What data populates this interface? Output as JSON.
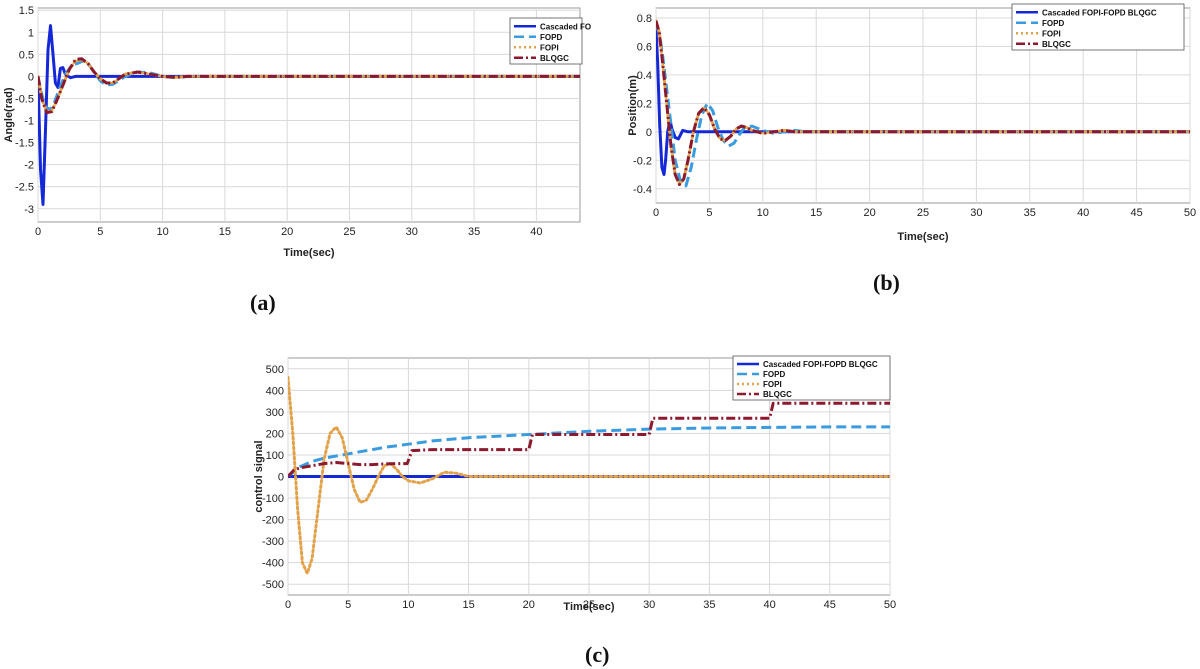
{
  "series_styles": [
    {
      "name": "Cascaded FOPI-FOPD BLQGC",
      "color": "#1428d8",
      "dash": "",
      "width": 3
    },
    {
      "name": "FOPD",
      "color": "#3a9be0",
      "dash": "10,5",
      "width": 3
    },
    {
      "name": "FOPI",
      "color": "#e2a24a",
      "dash": "2,3",
      "width": 3
    },
    {
      "name": "BLQGC",
      "color": "#8b1a2e",
      "dash": "9,3,2,3",
      "width": 3
    }
  ],
  "panels": {
    "a": {
      "label": "(a)"
    },
    "b": {
      "label": "(b)"
    },
    "c": {
      "label": "(c)"
    }
  },
  "chart_data": [
    {
      "id": "a",
      "type": "line",
      "xlabel": "Time(sec)",
      "ylabel": "Angle(rad)",
      "xlim": [
        0,
        43.5
      ],
      "ylim": [
        -3.3,
        1.55
      ],
      "xticks": [
        0,
        5,
        10,
        15,
        20,
        25,
        30,
        35,
        40
      ],
      "yticks": [
        -3,
        -2.5,
        -2,
        -1.5,
        -1,
        -0.5,
        0,
        0.5,
        1,
        1.5
      ],
      "yticklabels": [
        "-3",
        "-2.5",
        "-2",
        "-1.5",
        "-1",
        "-0.5",
        "0",
        "0.5",
        "1",
        "1.5"
      ],
      "legend": [
        "Cascaded FO",
        "FOPD",
        "FOPI",
        "BLQGC"
      ],
      "series": [
        {
          "name": "Cascaded FOPI-FOPD BLQGC",
          "x": [
            0,
            0.2,
            0.4,
            0.6,
            0.8,
            1.0,
            1.2,
            1.4,
            1.6,
            1.8,
            2.0,
            2.2,
            2.6,
            3.0,
            4,
            43.5
          ],
          "y": [
            0,
            -2.1,
            -2.9,
            -1.2,
            0.6,
            1.15,
            0.5,
            -0.15,
            -0.25,
            0.18,
            0.2,
            0.05,
            -0.03,
            0,
            0,
            0
          ]
        },
        {
          "name": "FOPD",
          "x": [
            0,
            0.3,
            0.6,
            1.0,
            1.3,
            1.7,
            2.2,
            2.7,
            3.2,
            3.6,
            4.0,
            4.5,
            5.0,
            5.5,
            6.0,
            7.0,
            8.0,
            9.0,
            10,
            11,
            12,
            13,
            43.5
          ],
          "y": [
            0,
            -0.4,
            -0.7,
            -0.75,
            -0.6,
            -0.3,
            0.05,
            0.25,
            0.3,
            0.35,
            0.3,
            0.1,
            -0.1,
            -0.2,
            -0.18,
            0,
            0.1,
            0.08,
            0,
            -0.03,
            0,
            0,
            0
          ]
        },
        {
          "name": "FOPI",
          "x": [
            0,
            0.3,
            0.7,
            1.1,
            1.5,
            2.0,
            2.5,
            3.0,
            3.5,
            4.0,
            4.5,
            5.0,
            5.5,
            6.0,
            7.0,
            8.0,
            9.0,
            10,
            11,
            12,
            43.5
          ],
          "y": [
            0,
            -0.5,
            -0.8,
            -0.78,
            -0.55,
            -0.2,
            0.15,
            0.35,
            0.38,
            0.3,
            0.1,
            -0.05,
            -0.15,
            -0.15,
            0.05,
            0.1,
            0.05,
            0,
            -0.02,
            0,
            0
          ]
        },
        {
          "name": "BLQGC",
          "x": [
            0,
            0.3,
            0.7,
            1.1,
            1.5,
            2.0,
            2.5,
            3.0,
            3.5,
            4.0,
            4.5,
            5.0,
            5.5,
            6.0,
            7.0,
            8.0,
            9.0,
            10,
            11,
            12,
            43.5
          ],
          "y": [
            0,
            -0.5,
            -0.82,
            -0.8,
            -0.55,
            -0.2,
            0.15,
            0.38,
            0.4,
            0.3,
            0.1,
            -0.05,
            -0.15,
            -0.15,
            0.05,
            0.1,
            0.05,
            0,
            -0.02,
            0,
            0
          ]
        }
      ]
    },
    {
      "id": "b",
      "type": "line",
      "xlabel": "Time(sec)",
      "ylabel": "Position(m)",
      "xlim": [
        0,
        50
      ],
      "ylim": [
        -0.5,
        0.87
      ],
      "xticks": [
        0,
        5,
        10,
        15,
        20,
        25,
        30,
        35,
        40,
        45,
        50
      ],
      "yticks": [
        -0.4,
        -0.2,
        0,
        0.2,
        0.4,
        0.6,
        0.8
      ],
      "yticklabels": [
        "-0.4",
        "-0.2",
        "0",
        "0.2",
        "0.4",
        "0.6",
        "0.8"
      ],
      "legend": [
        "Cascaded FOPI-FOPD BLQGC",
        "FOPD",
        "FOPI",
        "BLQGC"
      ],
      "series": [
        {
          "name": "Cascaded FOPI-FOPD BLQGC",
          "x": [
            0,
            0.15,
            0.35,
            0.55,
            0.75,
            0.9,
            1.1,
            1.3,
            1.5,
            1.8,
            2.1,
            2.5,
            3.0,
            4,
            50
          ],
          "y": [
            0.72,
            0.5,
            0.05,
            -0.25,
            -0.3,
            -0.2,
            0.0,
            0.08,
            0.02,
            -0.04,
            -0.05,
            0.01,
            0,
            0,
            0
          ]
        },
        {
          "name": "FOPD",
          "x": [
            0,
            0.3,
            0.6,
            1.0,
            1.4,
            1.8,
            2.3,
            2.8,
            3.3,
            3.8,
            4.3,
            4.8,
            5.3,
            5.8,
            6.3,
            6.8,
            7.3,
            7.8,
            8.3,
            9.0,
            10,
            11,
            12,
            13,
            14,
            50
          ],
          "y": [
            0.75,
            0.7,
            0.55,
            0.3,
            0.05,
            -0.2,
            -0.35,
            -0.38,
            -0.25,
            -0.05,
            0.12,
            0.2,
            0.15,
            0.03,
            -0.06,
            -0.1,
            -0.08,
            -0.02,
            0.03,
            0.04,
            0.01,
            -0.01,
            0,
            0.01,
            0,
            0
          ]
        },
        {
          "name": "FOPI",
          "x": [
            0,
            0.3,
            0.6,
            1.0,
            1.4,
            1.8,
            2.2,
            2.6,
            3.0,
            3.5,
            4.0,
            4.5,
            5.0,
            5.5,
            6.0,
            6.5,
            7.0,
            7.5,
            8.0,
            8.5,
            9.0,
            10,
            11,
            12,
            13,
            50
          ],
          "y": [
            0.78,
            0.7,
            0.5,
            0.2,
            -0.1,
            -0.3,
            -0.37,
            -0.33,
            -0.2,
            0.0,
            0.13,
            0.17,
            0.12,
            0.02,
            -0.05,
            -0.06,
            -0.03,
            0.02,
            0.04,
            0.03,
            0.01,
            -0.01,
            0,
            0.01,
            0,
            0
          ]
        },
        {
          "name": "BLQGC",
          "x": [
            0,
            0.3,
            0.6,
            1.0,
            1.4,
            1.8,
            2.2,
            2.6,
            3.0,
            3.5,
            4.0,
            4.5,
            5.0,
            5.5,
            6.0,
            6.5,
            7.0,
            7.5,
            8.0,
            8.5,
            9.0,
            10,
            11,
            12,
            13,
            50
          ],
          "y": [
            0.78,
            0.7,
            0.5,
            0.2,
            -0.1,
            -0.3,
            -0.37,
            -0.33,
            -0.2,
            0.0,
            0.13,
            0.17,
            0.12,
            0.02,
            -0.05,
            -0.06,
            -0.03,
            0.02,
            0.04,
            0.03,
            0.01,
            -0.01,
            0,
            0.01,
            0,
            0
          ]
        }
      ]
    },
    {
      "id": "c",
      "type": "line",
      "xlabel": "Time(sec)",
      "ylabel": "control signal",
      "xlim": [
        0,
        50
      ],
      "ylim": [
        -550,
        550
      ],
      "xticks": [
        0,
        5,
        10,
        15,
        20,
        25,
        30,
        35,
        40,
        45,
        50
      ],
      "yticks": [
        -500,
        -400,
        -300,
        -200,
        -100,
        0,
        100,
        200,
        300,
        400,
        500
      ],
      "yticklabels": [
        "-500",
        "-400",
        "-300",
        "-200",
        "-100",
        "0",
        "100",
        "200",
        "300",
        "400",
        "500"
      ],
      "legend": [
        "Cascaded FOPI-FOPD BLQGC",
        "FOPD",
        "FOPI",
        "BLQGC"
      ],
      "series": [
        {
          "name": "Cascaded FOPI-FOPD BLQGC",
          "x": [
            0,
            50
          ],
          "y": [
            0,
            0
          ]
        },
        {
          "name": "FOPD",
          "x": [
            0,
            1,
            2,
            3,
            4,
            5,
            6,
            7,
            8,
            10,
            12,
            15,
            20,
            25,
            30,
            35,
            40,
            45,
            50
          ],
          "y": [
            0,
            45,
            70,
            85,
            95,
            105,
            115,
            125,
            135,
            150,
            165,
            180,
            195,
            210,
            220,
            225,
            228,
            230,
            230
          ]
        },
        {
          "name": "FOPI",
          "x": [
            0,
            0.4,
            0.8,
            1.2,
            1.6,
            2.0,
            2.5,
            3.0,
            3.5,
            4.0,
            4.5,
            5.0,
            5.5,
            6.0,
            6.5,
            7.0,
            7.5,
            8.0,
            8.5,
            9.0,
            9.5,
            10,
            11,
            12,
            13,
            14,
            15,
            16,
            50
          ],
          "y": [
            460,
            200,
            -150,
            -400,
            -450,
            -380,
            -150,
            80,
            200,
            230,
            180,
            60,
            -60,
            -120,
            -110,
            -60,
            0,
            50,
            60,
            35,
            0,
            -20,
            -30,
            -10,
            20,
            15,
            0,
            0,
            0
          ]
        },
        {
          "name": "BLQGC",
          "x": [
            0,
            0.5,
            1,
            1.5,
            2,
            3,
            4,
            5,
            6,
            7,
            8,
            9,
            9.9,
            10.3,
            12,
            15,
            20,
            20.3,
            22,
            25,
            30,
            30.3,
            32,
            35,
            40,
            40.3,
            42,
            45,
            50
          ],
          "y": [
            0,
            30,
            40,
            45,
            50,
            60,
            65,
            60,
            55,
            55,
            58,
            60,
            60,
            120,
            125,
            125,
            125,
            195,
            195,
            195,
            195,
            270,
            270,
            270,
            270,
            340,
            340,
            340,
            340
          ]
        }
      ]
    }
  ]
}
